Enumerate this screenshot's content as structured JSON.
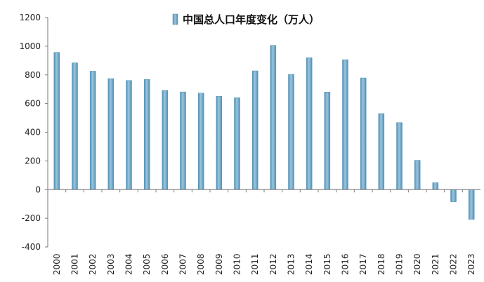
{
  "chart_data": {
    "type": "bar",
    "categories": [
      "2000",
      "2001",
      "2002",
      "2003",
      "2004",
      "2005",
      "2006",
      "2007",
      "2008",
      "2009",
      "2010",
      "2011",
      "2012",
      "2013",
      "2014",
      "2015",
      "2016",
      "2017",
      "2018",
      "2019",
      "2020",
      "2021",
      "2022",
      "2023"
    ],
    "series": [
      {
        "name": "中国总人口年度变化（万人）",
        "values": [
          957,
          884,
          826,
          774,
          761,
          768,
          692,
          681,
          673,
          651,
          641,
          828,
          1006,
          804,
          920,
          680,
          906,
          779,
          530,
          467,
          204,
          48,
          -85,
          -208
        ],
        "color": "#6aa6c6"
      }
    ],
    "title": "",
    "xlabel": "",
    "ylabel": "",
    "ylim": [
      -400,
      1200
    ],
    "yticks": [
      "1200",
      "1000",
      "800",
      "600",
      "400",
      "200",
      "0",
      "-200",
      "-400"
    ],
    "grid": false,
    "legend": "top-center"
  }
}
